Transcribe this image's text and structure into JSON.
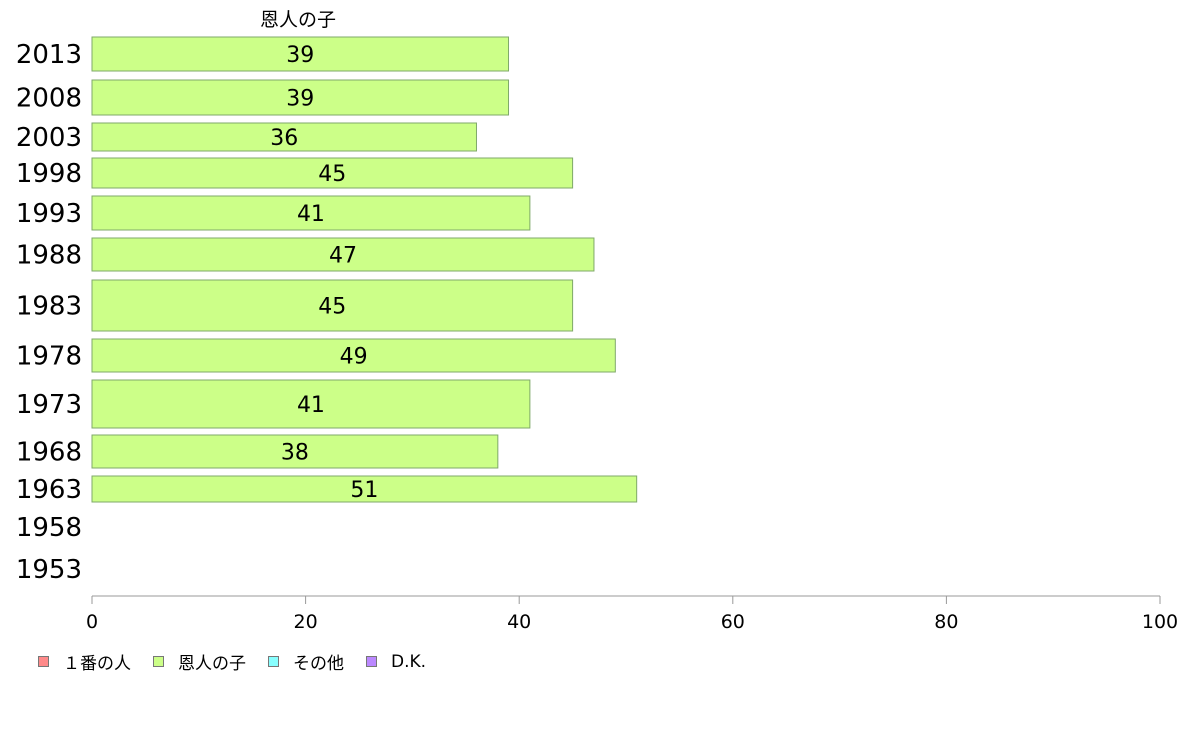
{
  "chart_data": {
    "type": "bar",
    "orientation": "horizontal",
    "title": "恩人の子",
    "xlabel": "",
    "ylabel": "",
    "xlim": [
      0,
      100
    ],
    "xticks": [
      0,
      20,
      40,
      60,
      80,
      100
    ],
    "grid": false,
    "legend_position": "bottom-left",
    "categories": [
      "2013",
      "2008",
      "2003",
      "1998",
      "1993",
      "1988",
      "1983",
      "1978",
      "1973",
      "1968",
      "1963",
      "1958",
      "1953"
    ],
    "series": [
      {
        "name": "恩人の子",
        "color": "#ccff88",
        "values": [
          39,
          39,
          36,
          45,
          41,
          47,
          45,
          49,
          41,
          38,
          51,
          null,
          null
        ],
        "labels": [
          "39",
          "39",
          "36",
          "45",
          "41",
          "47",
          "45",
          "49",
          "41",
          "38",
          "51",
          "",
          ""
        ]
      }
    ],
    "legend": [
      {
        "name": "１番の人",
        "color": "#ff8a8a"
      },
      {
        "name": "恩人の子",
        "color": "#ccff88"
      },
      {
        "name": "その他",
        "color": "#88ffff"
      },
      {
        "name": "D.K.",
        "color": "#bb88ff"
      }
    ]
  }
}
